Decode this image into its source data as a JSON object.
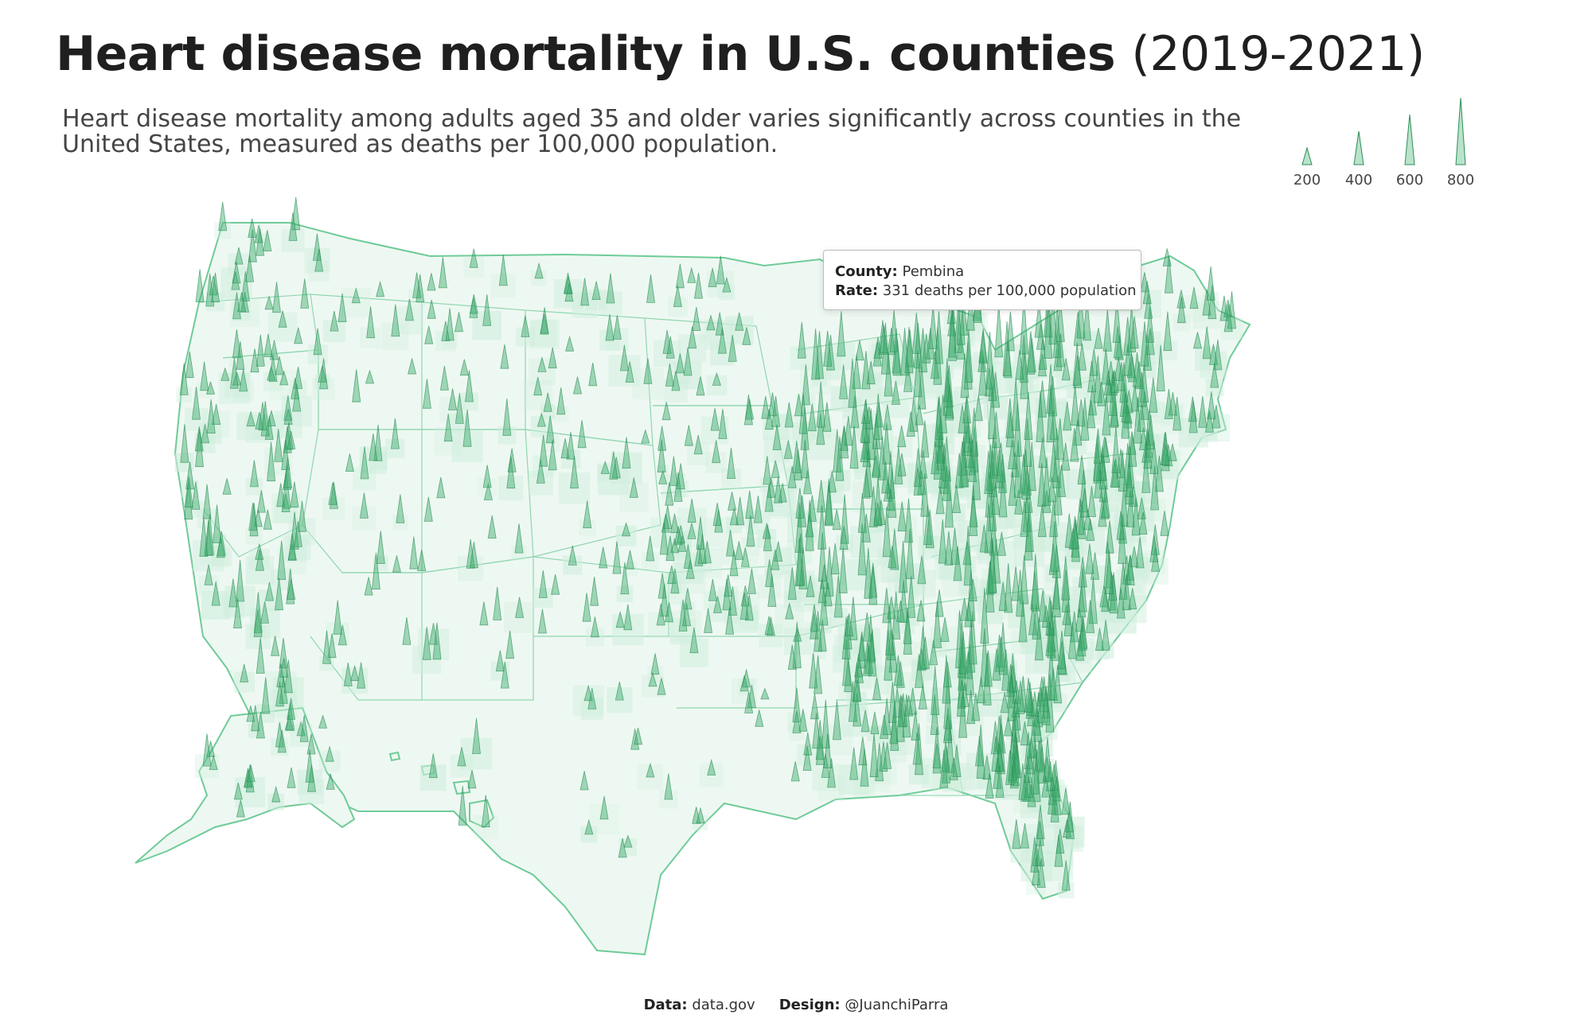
{
  "header": {
    "title": "Heart disease mortality in U.S. counties",
    "title_years": "(2019-2021)",
    "subtitle": "Heart disease mortality among adults aged 35 and older varies significantly across counties in the United States, measured as deaths per 100,000 population."
  },
  "legend": {
    "items": [
      {
        "label": "200",
        "value": 200
      },
      {
        "label": "400",
        "value": 400
      },
      {
        "label": "600",
        "value": 600
      },
      {
        "label": "800",
        "value": 800
      }
    ]
  },
  "tooltip": {
    "county_key": "County:",
    "county_value": "Pembina",
    "rate_key": "Rate:",
    "rate_value": "331 deaths per 100,000 population"
  },
  "credits": {
    "data_key": "Data:",
    "data_value": "data.gov",
    "design_key": "Design:",
    "design_value": "@JuanchiParra"
  },
  "colors": {
    "spike_fill": "#3aab6b",
    "spike_stroke": "#2e8f58",
    "land_fill": "#eef8f2",
    "land_stroke": "#6fcb98",
    "county_shade": "#cfeedd"
  }
}
